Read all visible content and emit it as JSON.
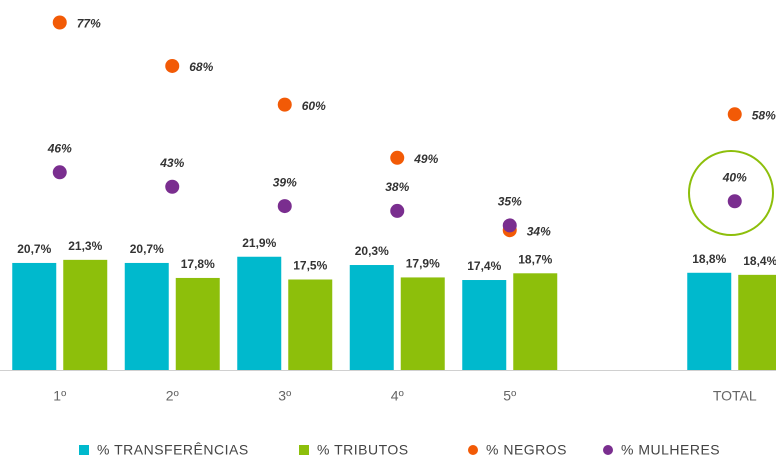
{
  "chart_data": {
    "type": "bar",
    "categories": [
      "1º",
      "2º",
      "3º",
      "4º",
      "5º",
      null,
      "TOTAL"
    ],
    "ylim": [
      0,
      70
    ],
    "y2lim": [
      0,
      80
    ],
    "series": [
      {
        "name": "% TRANSFERÊNCIAS",
        "type": "bar",
        "color": "#00b9cd",
        "values": [
          20.7,
          20.7,
          21.9,
          20.3,
          17.4,
          null,
          18.8
        ],
        "value_labels": [
          "20,7%",
          "20,7%",
          "21,9%",
          "20,3%",
          "17,4%",
          null,
          "18,8%"
        ]
      },
      {
        "name": "% TRIBUTOS",
        "type": "bar",
        "color": "#8dbf0b",
        "values": [
          21.3,
          17.8,
          17.5,
          17.9,
          18.7,
          null,
          18.4
        ],
        "value_labels": [
          "21,3%",
          "17,8%",
          "17,5%",
          "17,9%",
          "18,7%",
          null,
          "18,4%"
        ]
      },
      {
        "name": "% NEGROS",
        "type": "scatter",
        "axis": "y2",
        "color": "#f25a06",
        "values": [
          77,
          68,
          60,
          49,
          34,
          null,
          58
        ],
        "value_labels": [
          "77%",
          "68%",
          "60%",
          "49%",
          "34%",
          null,
          "58%"
        ]
      },
      {
        "name": "% MULHERES",
        "type": "scatter",
        "axis": "y2",
        "color": "#7a2e8f",
        "values": [
          46,
          43,
          39,
          38,
          35,
          null,
          40
        ],
        "value_labels": [
          "46%",
          "43%",
          "39%",
          "38%",
          "35%",
          null,
          "40%"
        ]
      }
    ]
  }
}
